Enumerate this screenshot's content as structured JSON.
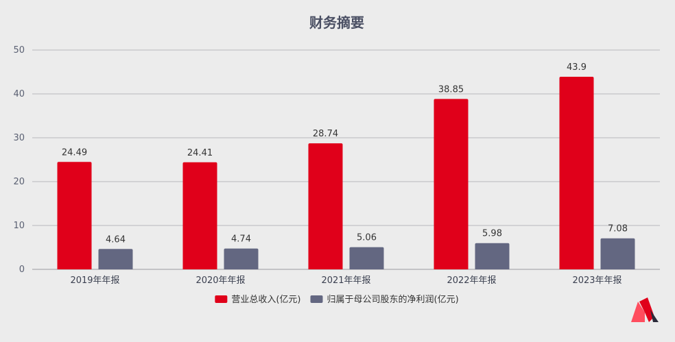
{
  "chart_data": {
    "type": "bar",
    "title": "财务摘要",
    "categories": [
      "2019年年报",
      "2020年年报",
      "2021年年报",
      "2022年年报",
      "2023年年报"
    ],
    "series": [
      {
        "name": "营业总收入(亿元)",
        "values": [
          24.49,
          24.41,
          28.74,
          38.85,
          43.9
        ],
        "color": "#e0001a"
      },
      {
        "name": "归属于母公司股东的净利润(亿元)",
        "values": [
          4.64,
          4.74,
          5.06,
          5.98,
          7.08
        ],
        "color": "#636781"
      }
    ],
    "yticks": [
      0,
      10,
      20,
      30,
      40,
      50
    ],
    "ylim": [
      0,
      50
    ],
    "grid": true,
    "legend": "bottom-center"
  },
  "logo": {
    "name": "brand-logo-icon",
    "colors": [
      "#ff4d5e",
      "#e0001a",
      "#2b2b3a"
    ]
  }
}
